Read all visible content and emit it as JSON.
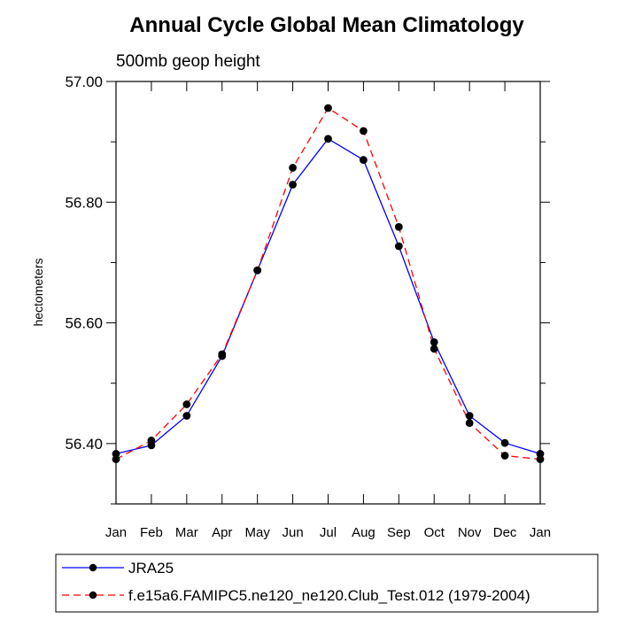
{
  "chart_data": {
    "type": "line",
    "title": "Annual Cycle Global Mean Climatology",
    "subtitle": "500mb geop height",
    "ylabel": "hectometers",
    "xlabel": "",
    "categories": [
      "Jan",
      "Feb",
      "Mar",
      "Apr",
      "May",
      "Jun",
      "Jul",
      "Aug",
      "Sep",
      "Oct",
      "Nov",
      "Dec",
      "Jan"
    ],
    "yticks": [
      "56.40",
      "56.60",
      "56.80",
      "57.00"
    ],
    "ylim": [
      56.3,
      57.0
    ],
    "grid": false,
    "legend_position": "bottom",
    "series": [
      {
        "name": "JRA25",
        "color": "#0000ff",
        "dash": "solid",
        "values": [
          56.383,
          56.397,
          56.446,
          56.545,
          56.687,
          56.829,
          56.905,
          56.87,
          56.727,
          56.568,
          56.446,
          56.401,
          56.383
        ]
      },
      {
        "name": "f.e15a6.FAMIPC5.ne120_ne120.Club_Test.012 (1979-2004)",
        "color": "#ff0000",
        "dash": "dashed",
        "values": [
          56.374,
          56.405,
          56.465,
          56.548,
          56.687,
          56.857,
          56.956,
          56.918,
          56.759,
          56.557,
          56.434,
          56.38,
          56.374
        ]
      }
    ]
  }
}
